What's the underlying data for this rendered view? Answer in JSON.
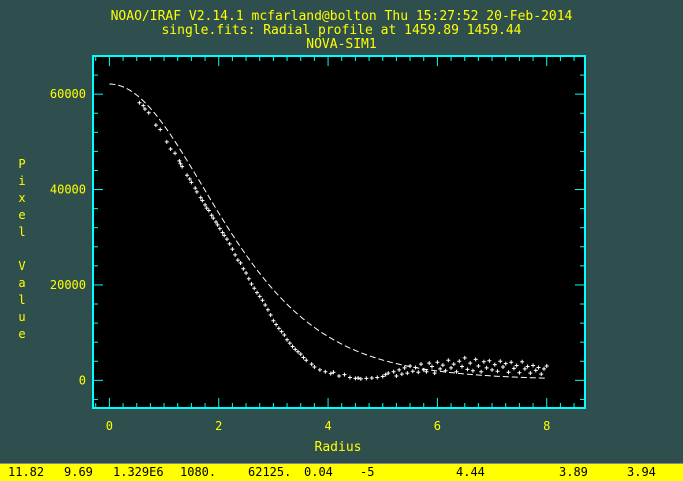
{
  "header": {
    "line1": "NOAO/IRAF V2.14.1 mcfarland@bolton Thu 15:27:52 20-Feb-2014",
    "line2": "single.fits: Radial profile at 1459.89 1459.44",
    "line3": "NOVA-SIM1"
  },
  "colors": {
    "background": "#2f4f4f",
    "axes": "#00ffff",
    "labels": "#ffff00",
    "plot_area": "#000000",
    "data": "#ffffff",
    "status_bar": "#ffff00"
  },
  "chart_data": {
    "type": "scatter",
    "xlabel": "Radius",
    "ylabel": "Pixel Value",
    "xlim": [
      -0.3,
      8.7
    ],
    "ylim": [
      -5800,
      68000
    ],
    "x_ticks": [
      0,
      2,
      4,
      6,
      8
    ],
    "y_ticks": [
      0,
      20000,
      40000,
      60000
    ],
    "x_tick_labels": [
      "0",
      "2",
      "4",
      "6",
      "8"
    ],
    "y_tick_labels": [
      "0",
      "20000",
      "40000",
      "60000"
    ],
    "grid": false,
    "fit_model": {
      "name": "moffat",
      "amplitude": 62125,
      "fwhm": 4.44,
      "beta": 3.94,
      "r_min": 0,
      "r_max": 8,
      "style": "dashed"
    },
    "points": [
      [
        0.55,
        58200
      ],
      [
        0.62,
        57600
      ],
      [
        0.65,
        56900
      ],
      [
        0.72,
        56100
      ],
      [
        0.85,
        53500
      ],
      [
        0.93,
        52600
      ],
      [
        1.05,
        50000
      ],
      [
        1.12,
        48500
      ],
      [
        1.2,
        47600
      ],
      [
        1.28,
        46000
      ],
      [
        1.3,
        45400
      ],
      [
        1.33,
        44800
      ],
      [
        1.42,
        43000
      ],
      [
        1.47,
        42200
      ],
      [
        1.5,
        41500
      ],
      [
        1.57,
        40300
      ],
      [
        1.6,
        39500
      ],
      [
        1.67,
        38300
      ],
      [
        1.7,
        37700
      ],
      [
        1.75,
        36800
      ],
      [
        1.78,
        36100
      ],
      [
        1.82,
        35600
      ],
      [
        1.87,
        34600
      ],
      [
        1.9,
        34000
      ],
      [
        1.95,
        33200
      ],
      [
        1.98,
        32600
      ],
      [
        2.02,
        31800
      ],
      [
        2.07,
        31000
      ],
      [
        2.1,
        30400
      ],
      [
        2.15,
        29600
      ],
      [
        2.2,
        28600
      ],
      [
        2.25,
        27500
      ],
      [
        2.3,
        26300
      ],
      [
        2.35,
        25200
      ],
      [
        2.4,
        24600
      ],
      [
        2.45,
        23400
      ],
      [
        2.5,
        22500
      ],
      [
        2.55,
        21300
      ],
      [
        2.6,
        20200
      ],
      [
        2.65,
        19300
      ],
      [
        2.7,
        18400
      ],
      [
        2.75,
        17600
      ],
      [
        2.8,
        16800
      ],
      [
        2.85,
        15800
      ],
      [
        2.9,
        14800
      ],
      [
        2.95,
        13700
      ],
      [
        3.0,
        12500
      ],
      [
        3.05,
        11700
      ],
      [
        3.1,
        10900
      ],
      [
        3.15,
        10200
      ],
      [
        3.2,
        9500
      ],
      [
        3.25,
        8500
      ],
      [
        3.3,
        7800
      ],
      [
        3.35,
        7100
      ],
      [
        3.4,
        6500
      ],
      [
        3.45,
        6000
      ],
      [
        3.5,
        5500
      ],
      [
        3.55,
        4800
      ],
      [
        3.6,
        4200
      ],
      [
        3.7,
        3400
      ],
      [
        3.75,
        2800
      ],
      [
        3.85,
        2200
      ],
      [
        3.95,
        1800
      ],
      [
        4.05,
        1400
      ],
      [
        4.1,
        1700
      ],
      [
        4.2,
        900
      ],
      [
        4.3,
        1200
      ],
      [
        4.4,
        600
      ],
      [
        4.5,
        400
      ],
      [
        4.55,
        500
      ],
      [
        4.6,
        300
      ],
      [
        4.7,
        400
      ],
      [
        4.8,
        500
      ],
      [
        4.9,
        600
      ],
      [
        5.0,
        800
      ],
      [
        5.05,
        1200
      ],
      [
        5.1,
        1500
      ],
      [
        5.2,
        1800
      ],
      [
        5.25,
        900
      ],
      [
        5.3,
        2200
      ],
      [
        5.35,
        1300
      ],
      [
        5.4,
        2600
      ],
      [
        5.45,
        1500
      ],
      [
        5.5,
        3000
      ],
      [
        5.55,
        1900
      ],
      [
        5.6,
        2700
      ],
      [
        5.65,
        1700
      ],
      [
        5.7,
        3400
      ],
      [
        5.75,
        2200
      ],
      [
        5.8,
        1800
      ],
      [
        5.85,
        3600
      ],
      [
        5.9,
        2900
      ],
      [
        5.95,
        1500
      ],
      [
        6.0,
        3800
      ],
      [
        6.05,
        2400
      ],
      [
        6.1,
        3200
      ],
      [
        6.15,
        2000
      ],
      [
        6.2,
        4200
      ],
      [
        6.25,
        2600
      ],
      [
        6.3,
        3400
      ],
      [
        6.35,
        1800
      ],
      [
        6.4,
        4000
      ],
      [
        6.45,
        2900
      ],
      [
        6.5,
        4700
      ],
      [
        6.55,
        2300
      ],
      [
        6.6,
        3600
      ],
      [
        6.65,
        2000
      ],
      [
        6.7,
        4400
      ],
      [
        6.75,
        3000
      ],
      [
        6.8,
        1800
      ],
      [
        6.85,
        3900
      ],
      [
        6.9,
        2600
      ],
      [
        6.95,
        4100
      ],
      [
        7.0,
        2200
      ],
      [
        7.05,
        3300
      ],
      [
        7.1,
        1900
      ],
      [
        7.15,
        4000
      ],
      [
        7.2,
        2800
      ],
      [
        7.25,
        3500
      ],
      [
        7.3,
        1700
      ],
      [
        7.35,
        3800
      ],
      [
        7.4,
        2500
      ],
      [
        7.45,
        3100
      ],
      [
        7.5,
        1600
      ],
      [
        7.55,
        3900
      ],
      [
        7.6,
        2400
      ],
      [
        7.65,
        2900
      ],
      [
        7.7,
        1500
      ],
      [
        7.75,
        3100
      ],
      [
        7.8,
        2100
      ],
      [
        7.85,
        2700
      ],
      [
        7.9,
        1300
      ],
      [
        7.95,
        2400
      ],
      [
        8.0,
        3000
      ]
    ]
  },
  "status_bar": {
    "values": [
      "11.82",
      "9.69",
      "1.329E6",
      "1080.",
      "62125.",
      "0.04",
      "-5",
      "4.44",
      "3.89",
      "3.94"
    ]
  }
}
